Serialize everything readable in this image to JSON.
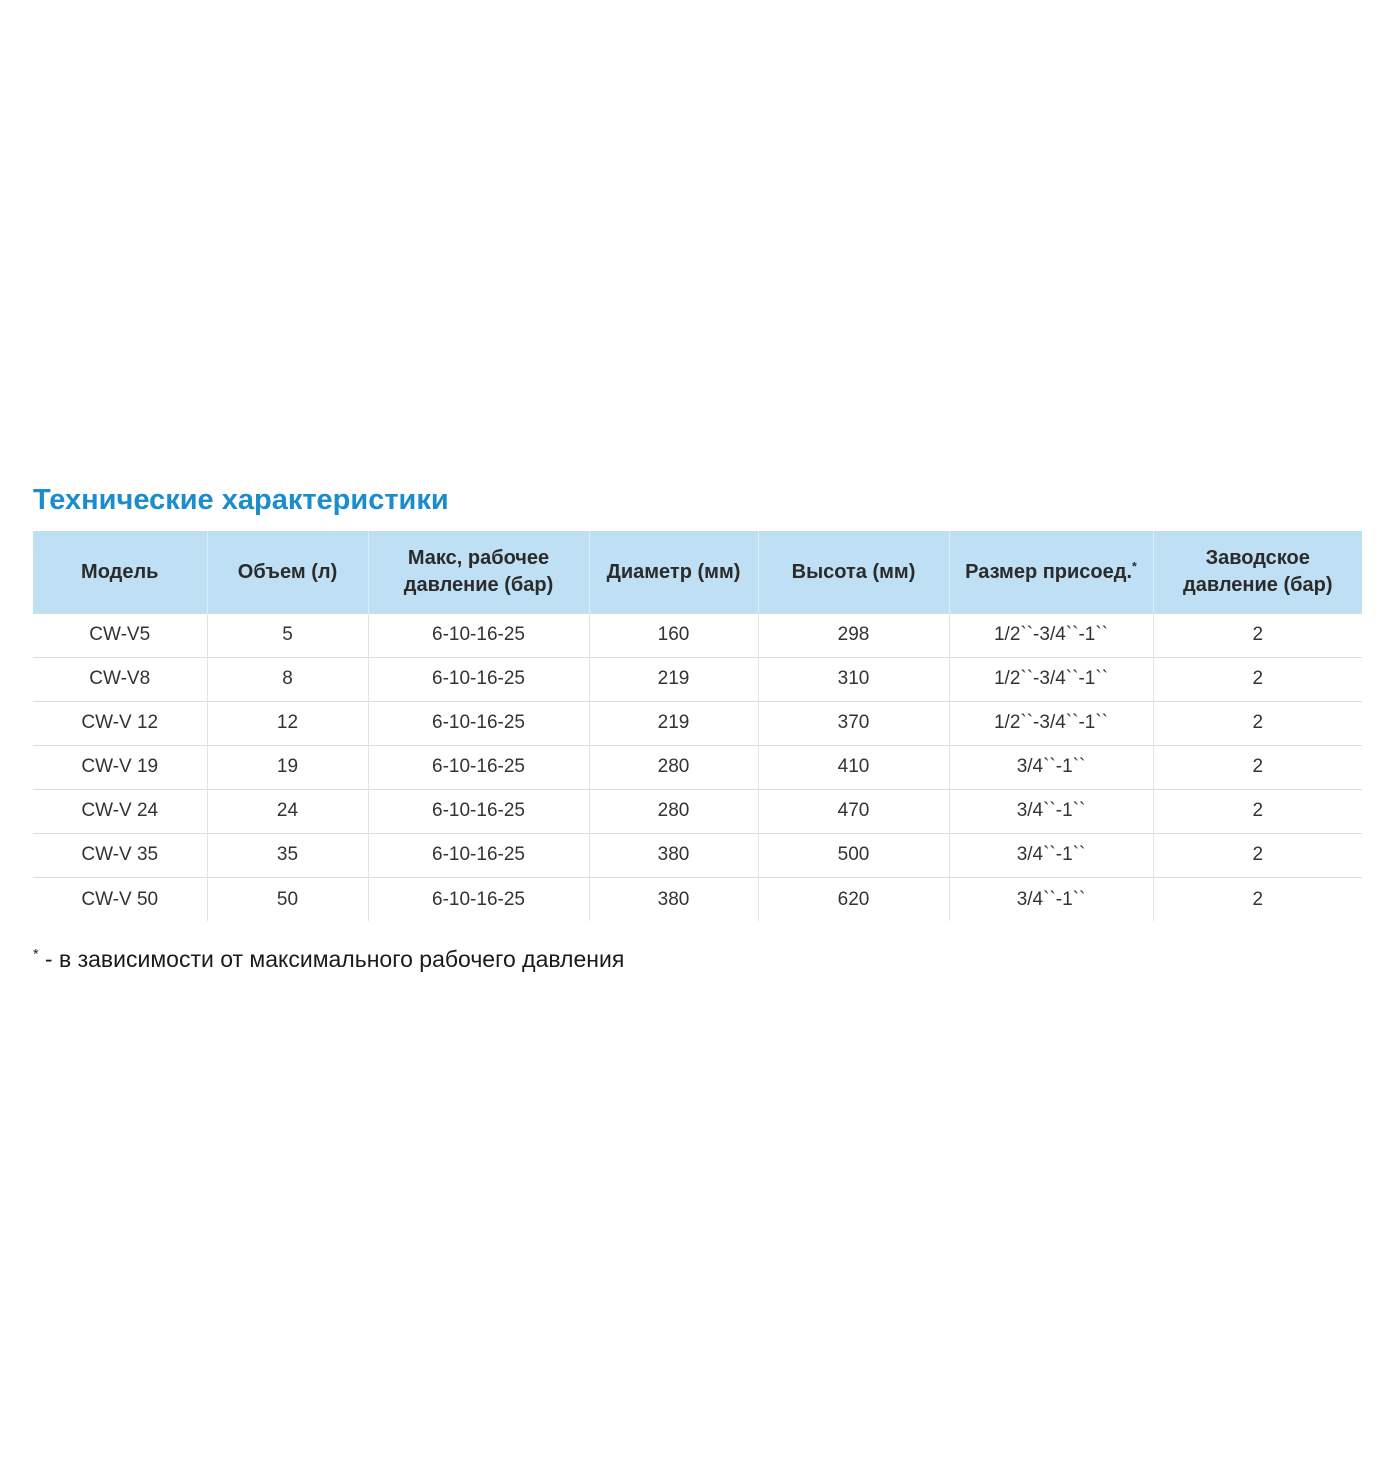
{
  "page": {
    "title": "Технические характеристики"
  },
  "table": {
    "columns": [
      {
        "label": "Модель"
      },
      {
        "label": "Объем (л)"
      },
      {
        "label": "Макс, рабочее давление (бар)"
      },
      {
        "label": "Диаметр (мм)"
      },
      {
        "label": "Высота (мм)"
      },
      {
        "label": "Размер присоед.",
        "sup": "*"
      },
      {
        "label": "Заводское давление (бар)"
      }
    ],
    "rows": [
      [
        "CW-V5",
        "5",
        "6-10-16-25",
        "160",
        "298",
        "1/2``-3/4``-1``",
        "2"
      ],
      [
        "CW-V8",
        "8",
        "6-10-16-25",
        "219",
        "310",
        "1/2``-3/4``-1``",
        "2"
      ],
      [
        "CW-V 12",
        "12",
        "6-10-16-25",
        "219",
        "370",
        "1/2``-3/4``-1``",
        "2"
      ],
      [
        "CW-V 19",
        "19",
        "6-10-16-25",
        "280",
        "410",
        "3/4``-1``",
        "2"
      ],
      [
        "CW-V 24",
        "24",
        "6-10-16-25",
        "280",
        "470",
        "3/4``-1``",
        "2"
      ],
      [
        "CW-V 35",
        "35",
        "6-10-16-25",
        "380",
        "500",
        "3/4``-1``",
        "2"
      ],
      [
        "CW-V 50",
        "50",
        "6-10-16-25",
        "380",
        "620",
        "3/4``-1``",
        "2"
      ]
    ]
  },
  "footnote": {
    "sup": "*",
    "text": " - в зависимости от максимального рабочего давления"
  },
  "colors": {
    "title": "#1b8ccd",
    "header_bg": "#bedff4",
    "header_text": "#2b2b2b",
    "cell_text": "#333333",
    "row_border": "#dcdcdc"
  }
}
